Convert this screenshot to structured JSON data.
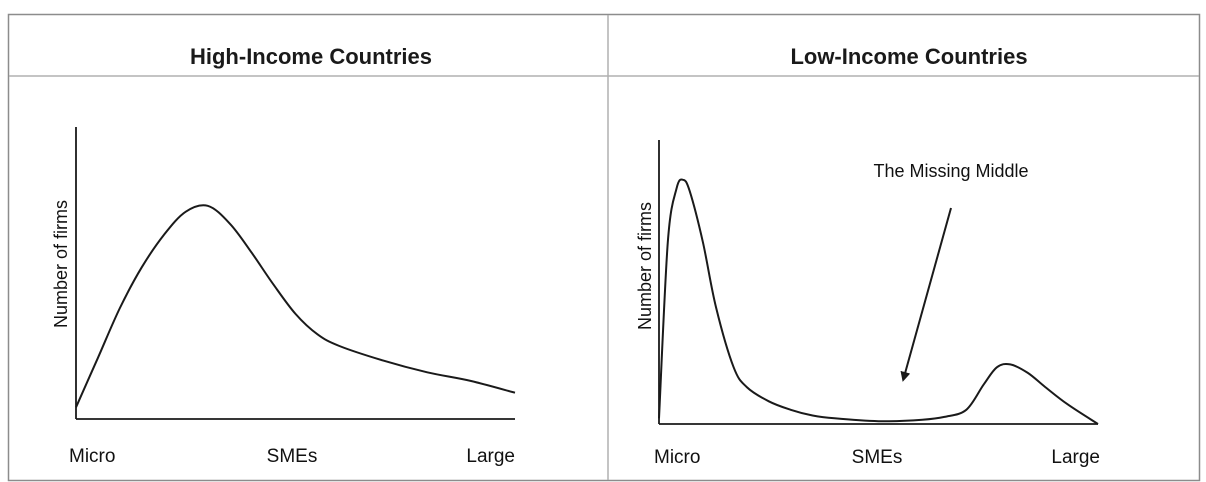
{
  "chart_data": [
    {
      "type": "line",
      "title": "High-Income Countries",
      "xlabel": "",
      "ylabel": "Number of firms",
      "categories": [
        "Micro",
        "SMEs",
        "Large"
      ],
      "x": [
        0,
        0.05,
        0.1,
        0.15,
        0.2,
        0.25,
        0.3,
        0.35,
        0.4,
        0.45,
        0.5,
        0.55,
        0.6,
        0.7,
        0.8,
        0.9,
        1.0
      ],
      "y": [
        0.04,
        0.21,
        0.38,
        0.52,
        0.63,
        0.71,
        0.73,
        0.67,
        0.57,
        0.46,
        0.36,
        0.29,
        0.25,
        0.2,
        0.16,
        0.13,
        0.09
      ],
      "xlim": [
        0,
        1
      ],
      "ylim": [
        0,
        1
      ],
      "grid": false
    },
    {
      "type": "line",
      "title": "Low-Income Countries",
      "xlabel": "",
      "ylabel": "Number of firms",
      "categories": [
        "Micro",
        "SMEs",
        "Large"
      ],
      "x": [
        0,
        0.02,
        0.04,
        0.055,
        0.07,
        0.1,
        0.13,
        0.17,
        0.2,
        0.25,
        0.3,
        0.35,
        0.4,
        0.5,
        0.6,
        0.65,
        0.7,
        0.74,
        0.77,
        0.8,
        0.84,
        0.88,
        0.93,
        1.0
      ],
      "y": [
        0.02,
        0.64,
        0.83,
        0.86,
        0.82,
        0.64,
        0.41,
        0.2,
        0.13,
        0.08,
        0.05,
        0.03,
        0.02,
        0.01,
        0.015,
        0.025,
        0.05,
        0.14,
        0.2,
        0.21,
        0.18,
        0.13,
        0.07,
        0.0
      ],
      "xlim": [
        0,
        1
      ],
      "ylim": [
        0,
        1
      ],
      "grid": false,
      "annotations": [
        {
          "text": "The Missing Middle",
          "points_to_x": 0.5,
          "points_to_y": 0.12
        }
      ]
    }
  ],
  "colors": {
    "line": "#1a1a1a",
    "axis": "#1a1a1a",
    "frame": "#8c8c8c",
    "divider": "#b0b0b0"
  }
}
